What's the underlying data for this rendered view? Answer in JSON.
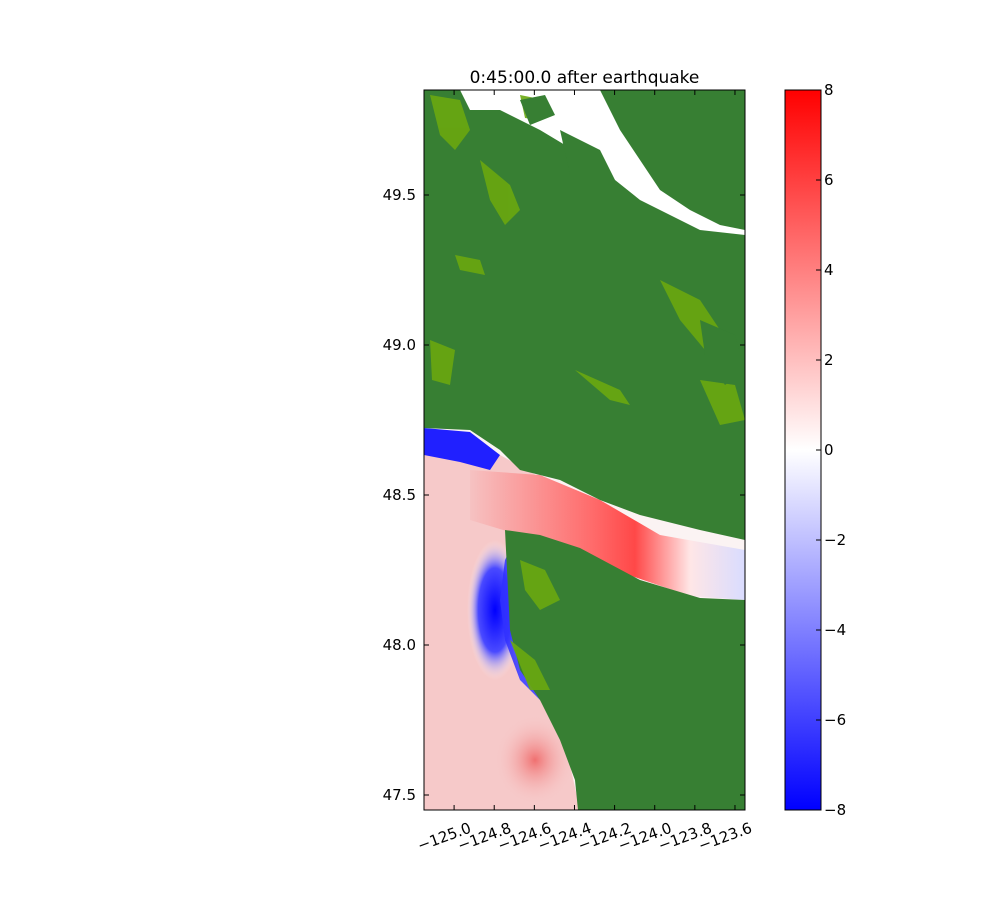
{
  "chart_data": {
    "type": "heatmap",
    "title": "0:45:00.0 after earthquake",
    "xlabel": "",
    "ylabel": "",
    "xlim": [
      -125.15,
      -123.55
    ],
    "ylim": [
      47.45,
      49.85
    ],
    "x_ticks": [
      -125.0,
      -124.8,
      -124.6,
      -124.4,
      -124.2,
      -124.0,
      -123.8,
      -123.6
    ],
    "x_tick_labels": [
      "−125.0",
      "−124.8",
      "−124.6",
      "−124.4",
      "−124.2",
      "−124.0",
      "−123.8",
      "−123.6"
    ],
    "y_ticks": [
      47.5,
      48.0,
      48.5,
      49.0,
      49.5
    ],
    "y_tick_labels": [
      "47.5",
      "48.0",
      "48.5",
      "49.0",
      "49.5"
    ],
    "colorbar": {
      "range": [
        -8,
        8
      ],
      "ticks": [
        -8,
        -6,
        -4,
        -2,
        0,
        2,
        4,
        6,
        8
      ],
      "tick_labels": [
        "−8",
        "−6",
        "−4",
        "−2",
        "0",
        "2",
        "4",
        "6",
        "8"
      ],
      "colormap": "blue-white-red",
      "low_color": "#0000ff",
      "mid_color": "#ffffff",
      "high_color": "#ff0000"
    },
    "land_color": "#377f33",
    "coast_color": "#6aa80f",
    "grid": false
  }
}
